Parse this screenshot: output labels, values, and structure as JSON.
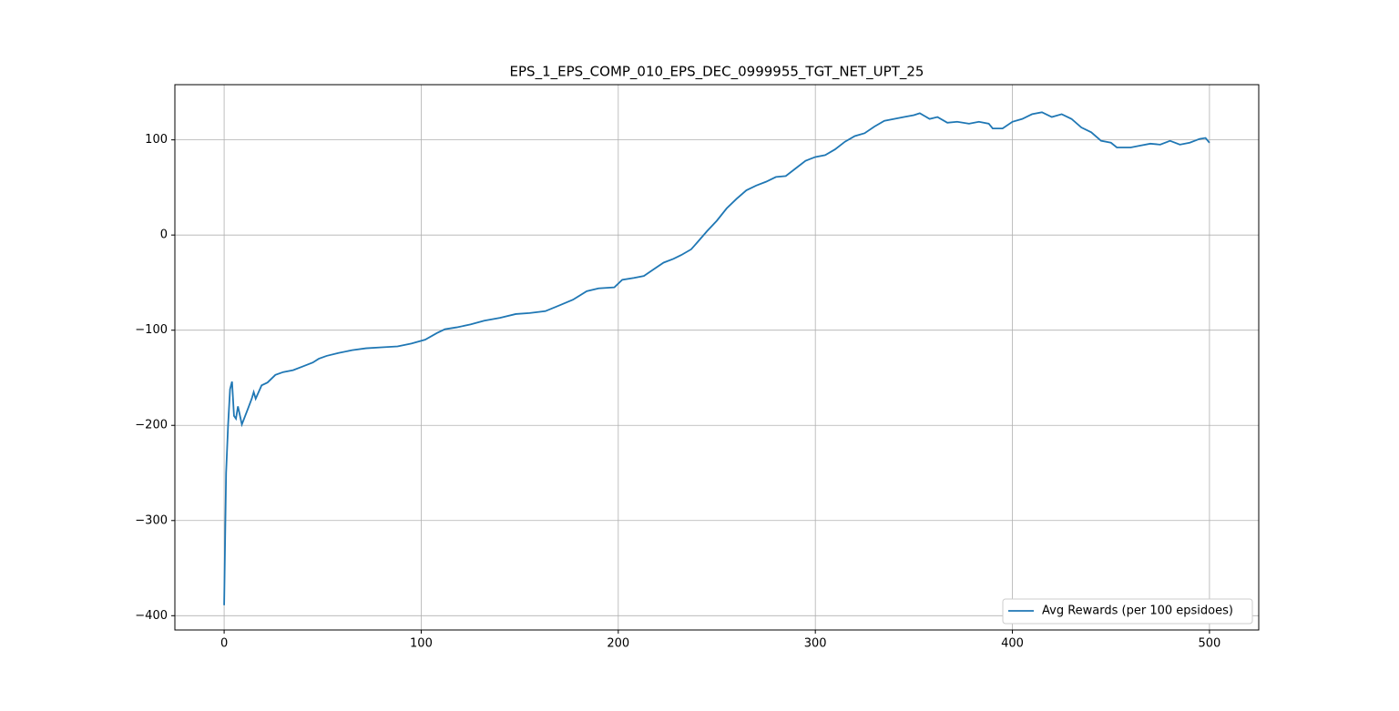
{
  "chart_data": {
    "type": "line",
    "title": "EPS_1_EPS_COMP_010_EPS_DEC_0999955_TGT_NET_UPT_25",
    "x": [
      0,
      1,
      2,
      3,
      4,
      5,
      6,
      7,
      9,
      12,
      14,
      15,
      16,
      19,
      22,
      26,
      30,
      35,
      40,
      45,
      48,
      52,
      58,
      65,
      72,
      80,
      88,
      95,
      102,
      108,
      112,
      118,
      125,
      132,
      140,
      148,
      155,
      163,
      170,
      177,
      184,
      190,
      198,
      202,
      208,
      213,
      218,
      223,
      228,
      232,
      237,
      240,
      245,
      250,
      255,
      260,
      265,
      270,
      275,
      280,
      285,
      290,
      295,
      300,
      305,
      310,
      315,
      320,
      325,
      330,
      335,
      340,
      345,
      350,
      353,
      358,
      362,
      367,
      372,
      378,
      383,
      388,
      390,
      395,
      400,
      405,
      410,
      415,
      420,
      425,
      430,
      435,
      440,
      445,
      450,
      453,
      460,
      465,
      470,
      475,
      480,
      485,
      490,
      495,
      498,
      500
    ],
    "series": [
      {
        "name": "Avg Rewards (per 100 epsidoes)",
        "color": "#1f77b4",
        "values": [
          -389,
          -250,
          -200,
          -162,
          -154,
          -190,
          -193,
          -180,
          -199,
          -183,
          -172,
          -165,
          -172,
          -158,
          -155,
          -147,
          -144,
          -142,
          -138,
          -134,
          -130,
          -127,
          -124,
          -121,
          -119,
          -118,
          -117,
          -114,
          -110,
          -103,
          -99,
          -97,
          -94,
          -90,
          -87,
          -83,
          -82,
          -80,
          -74,
          -68,
          -59,
          -56,
          -55,
          -47,
          -45,
          -43,
          -36,
          -29,
          -25,
          -21,
          -15,
          -8,
          4,
          15,
          28,
          38,
          47,
          52,
          56,
          61,
          62,
          70,
          78,
          82,
          84,
          90,
          98,
          104,
          107,
          114,
          120,
          122,
          124,
          126,
          128,
          122,
          124,
          118,
          119,
          117,
          119,
          117,
          112,
          112,
          119,
          122,
          127,
          129,
          124,
          127,
          122,
          113,
          108,
          99,
          97,
          92,
          92,
          94,
          96,
          95,
          99,
          95,
          97,
          101,
          102,
          97
        ]
      }
    ],
    "xlim": [
      -25,
      525
    ],
    "ylim": [
      -415,
      158
    ],
    "xticks": [
      0,
      100,
      200,
      300,
      400,
      500
    ],
    "yticks": [
      {
        "value": -400,
        "label": "−400"
      },
      {
        "value": -300,
        "label": "−300"
      },
      {
        "value": -200,
        "label": "−200"
      },
      {
        "value": -100,
        "label": "−100"
      },
      0,
      100
    ],
    "grid": true,
    "legend": "lower right"
  }
}
